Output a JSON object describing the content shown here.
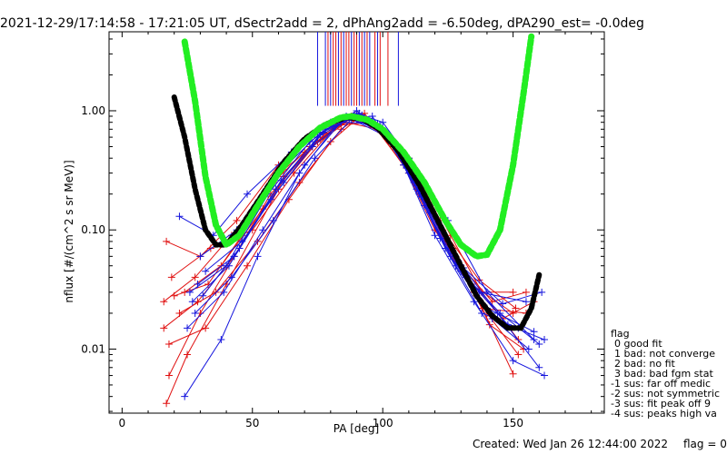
{
  "title": "2021-12-29/17:14:58 - 17:21:05 UT, dSectr2add = 2, dPhAng2add = -6.50deg, dPA290_est=  -0.0deg",
  "footer": {
    "created": "Created: Wed Jan 26 12:44:00 2022",
    "flag": "flag = 0"
  },
  "legend": {
    "title": "flag",
    "items": [
      "0 good fit",
      "1 bad: not converge",
      "2 bad: no fit",
      "3 bad: bad fgm stat",
      "-1 sus: far off medic",
      "-2 sus: not symmetric",
      "-3 sus: fit peak off 9",
      "-4 sus: peaks high va"
    ]
  },
  "colors": {
    "red": "#e01010",
    "blue": "#1515dd",
    "green": "#22ee22",
    "black": "#000000"
  },
  "chart_data": {
    "type": "line",
    "xlabel": "PA [deg]",
    "ylabel": "nflux [#/(cm^2 s sr MeV)]",
    "x_ticks": [
      0,
      50,
      100,
      150
    ],
    "y_ticks": [
      0.01,
      0.1,
      1.0
    ],
    "y_tick_labels": [
      "0.01",
      "0.10",
      "1.00"
    ],
    "xlim": [
      -5,
      185
    ],
    "ylim": [
      0.0029,
      4.6
    ],
    "yscale": "log",
    "red_lines": [
      [
        [
          17,
          0.0035
        ],
        [
          25,
          0.009
        ],
        [
          40,
          0.035
        ],
        [
          60,
          0.22
        ],
        [
          75,
          0.55
        ],
        [
          88,
          0.9
        ],
        [
          100,
          0.7
        ],
        [
          112,
          0.3
        ],
        [
          125,
          0.08
        ],
        [
          136,
          0.028
        ],
        [
          150,
          0.0062
        ]
      ],
      [
        [
          18,
          0.006
        ],
        [
          30,
          0.02
        ],
        [
          45,
          0.07
        ],
        [
          62,
          0.28
        ],
        [
          78,
          0.65
        ],
        [
          90,
          1.0
        ],
        [
          103,
          0.55
        ],
        [
          115,
          0.2
        ],
        [
          128,
          0.06
        ],
        [
          140,
          0.02
        ],
        [
          152,
          0.009
        ]
      ],
      [
        [
          16,
          0.025
        ],
        [
          28,
          0.04
        ],
        [
          42,
          0.09
        ],
        [
          58,
          0.25
        ],
        [
          72,
          0.5
        ],
        [
          86,
          0.85
        ],
        [
          98,
          0.75
        ],
        [
          110,
          0.4
        ],
        [
          122,
          0.12
        ],
        [
          134,
          0.035
        ],
        [
          150,
          0.02
        ]
      ],
      [
        [
          17,
          0.08
        ],
        [
          30,
          0.06
        ],
        [
          44,
          0.12
        ],
        [
          60,
          0.35
        ],
        [
          76,
          0.7
        ],
        [
          92,
          0.9
        ],
        [
          104,
          0.5
        ],
        [
          116,
          0.18
        ],
        [
          130,
          0.05
        ],
        [
          142,
          0.025
        ],
        [
          155,
          0.03
        ]
      ],
      [
        [
          18,
          0.011
        ],
        [
          32,
          0.015
        ],
        [
          48,
          0.05
        ],
        [
          64,
          0.18
        ],
        [
          80,
          0.55
        ],
        [
          90,
          0.85
        ],
        [
          102,
          0.6
        ],
        [
          114,
          0.28
        ],
        [
          126,
          0.09
        ],
        [
          138,
          0.03
        ],
        [
          152,
          0.012
        ]
      ],
      [
        [
          19,
          0.04
        ],
        [
          34,
          0.07
        ],
        [
          50,
          0.1
        ],
        [
          66,
          0.3
        ],
        [
          82,
          0.75
        ],
        [
          95,
          0.8
        ],
        [
          106,
          0.45
        ],
        [
          118,
          0.14
        ],
        [
          132,
          0.04
        ],
        [
          146,
          0.018
        ],
        [
          158,
          0.025
        ]
      ],
      [
        [
          22,
          0.02
        ],
        [
          36,
          0.03
        ],
        [
          52,
          0.08
        ],
        [
          68,
          0.25
        ],
        [
          84,
          0.7
        ],
        [
          93,
          0.95
        ],
        [
          108,
          0.35
        ],
        [
          120,
          0.1
        ],
        [
          135,
          0.03
        ],
        [
          150,
          0.03
        ]
      ],
      [
        [
          24,
          0.03
        ],
        [
          38,
          0.05
        ],
        [
          54,
          0.15
        ],
        [
          70,
          0.45
        ],
        [
          86,
          0.8
        ],
        [
          98,
          0.7
        ],
        [
          110,
          0.3
        ],
        [
          124,
          0.08
        ],
        [
          138,
          0.022
        ],
        [
          155,
          0.02
        ]
      ],
      [
        [
          20,
          0.028
        ],
        [
          33,
          0.035
        ],
        [
          46,
          0.09
        ],
        [
          62,
          0.32
        ],
        [
          77,
          0.6
        ],
        [
          89,
          0.9
        ],
        [
          101,
          0.65
        ],
        [
          113,
          0.25
        ],
        [
          127,
          0.07
        ],
        [
          141,
          0.016
        ],
        [
          154,
          0.01
        ]
      ],
      [
        [
          16,
          0.015
        ],
        [
          29,
          0.025
        ],
        [
          43,
          0.06
        ],
        [
          57,
          0.2
        ],
        [
          73,
          0.5
        ],
        [
          87,
          0.88
        ],
        [
          99,
          0.72
        ],
        [
          111,
          0.33
        ],
        [
          123,
          0.1
        ],
        [
          137,
          0.038
        ],
        [
          151,
          0.022
        ]
      ]
    ],
    "blue_lines": [
      [
        [
          22,
          0.13
        ],
        [
          35,
          0.09
        ],
        [
          48,
          0.2
        ],
        [
          65,
          0.45
        ],
        [
          80,
          0.8
        ],
        [
          90,
          0.95
        ],
        [
          100,
          0.8
        ],
        [
          110,
          0.4
        ],
        [
          125,
          0.12
        ],
        [
          140,
          0.03
        ],
        [
          158,
          0.012
        ]
      ],
      [
        [
          24,
          0.004
        ],
        [
          38,
          0.012
        ],
        [
          52,
          0.06
        ],
        [
          68,
          0.3
        ],
        [
          84,
          0.85
        ],
        [
          96,
          0.9
        ],
        [
          108,
          0.35
        ],
        [
          120,
          0.09
        ],
        [
          135,
          0.025
        ],
        [
          150,
          0.008
        ],
        [
          162,
          0.006
        ]
      ],
      [
        [
          26,
          0.03
        ],
        [
          40,
          0.05
        ],
        [
          56,
          0.2
        ],
        [
          72,
          0.55
        ],
        [
          86,
          0.9
        ],
        [
          100,
          0.7
        ],
        [
          112,
          0.25
        ],
        [
          124,
          0.07
        ],
        [
          138,
          0.02
        ],
        [
          152,
          0.015
        ]
      ],
      [
        [
          28,
          0.02
        ],
        [
          42,
          0.04
        ],
        [
          58,
          0.12
        ],
        [
          74,
          0.4
        ],
        [
          88,
          0.85
        ],
        [
          102,
          0.6
        ],
        [
          114,
          0.2
        ],
        [
          128,
          0.05
        ],
        [
          142,
          0.018
        ],
        [
          156,
          0.01
        ]
      ],
      [
        [
          30,
          0.06
        ],
        [
          44,
          0.1
        ],
        [
          60,
          0.3
        ],
        [
          76,
          0.65
        ],
        [
          90,
          1.0
        ],
        [
          104,
          0.55
        ],
        [
          116,
          0.16
        ],
        [
          130,
          0.045
        ],
        [
          145,
          0.02
        ],
        [
          160,
          0.011
        ]
      ],
      [
        [
          25,
          0.015
        ],
        [
          39,
          0.03
        ],
        [
          54,
          0.1
        ],
        [
          70,
          0.35
        ],
        [
          84,
          0.8
        ],
        [
          98,
          0.78
        ],
        [
          110,
          0.3
        ],
        [
          122,
          0.085
        ],
        [
          137,
          0.03
        ],
        [
          155,
          0.025
        ]
      ],
      [
        [
          32,
          0.045
        ],
        [
          46,
          0.08
        ],
        [
          62,
          0.25
        ],
        [
          78,
          0.7
        ],
        [
          92,
          0.92
        ],
        [
          106,
          0.5
        ],
        [
          118,
          0.14
        ],
        [
          132,
          0.04
        ],
        [
          148,
          0.016
        ],
        [
          162,
          0.012
        ]
      ],
      [
        [
          27,
          0.025
        ],
        [
          41,
          0.05
        ],
        [
          57,
          0.18
        ],
        [
          73,
          0.5
        ],
        [
          87,
          0.88
        ],
        [
          101,
          0.65
        ],
        [
          113,
          0.22
        ],
        [
          126,
          0.06
        ],
        [
          140,
          0.022
        ],
        [
          158,
          0.014
        ]
      ],
      [
        [
          29,
          0.035
        ],
        [
          43,
          0.06
        ],
        [
          59,
          0.22
        ],
        [
          75,
          0.6
        ],
        [
          89,
          0.9
        ],
        [
          103,
          0.58
        ],
        [
          115,
          0.19
        ],
        [
          129,
          0.055
        ],
        [
          144,
          0.02
        ],
        [
          160,
          0.007
        ]
      ],
      [
        [
          31,
          0.028
        ],
        [
          45,
          0.07
        ],
        [
          61,
          0.26
        ],
        [
          77,
          0.66
        ],
        [
          91,
          0.95
        ],
        [
          105,
          0.52
        ],
        [
          117,
          0.16
        ],
        [
          131,
          0.048
        ],
        [
          146,
          0.024
        ],
        [
          161,
          0.03
        ]
      ]
    ],
    "green_curve": [
      [
        24,
        3.8
      ],
      [
        28,
        1.2
      ],
      [
        32,
        0.28
      ],
      [
        36,
        0.11
      ],
      [
        40,
        0.075
      ],
      [
        45,
        0.09
      ],
      [
        52,
        0.16
      ],
      [
        60,
        0.3
      ],
      [
        68,
        0.5
      ],
      [
        76,
        0.72
      ],
      [
        84,
        0.88
      ],
      [
        88,
        0.9
      ],
      [
        94,
        0.84
      ],
      [
        100,
        0.7
      ],
      [
        108,
        0.45
      ],
      [
        116,
        0.25
      ],
      [
        124,
        0.12
      ],
      [
        130,
        0.075
      ],
      [
        136,
        0.06
      ],
      [
        140,
        0.062
      ],
      [
        145,
        0.1
      ],
      [
        150,
        0.35
      ],
      [
        154,
        1.4
      ],
      [
        157,
        4.2
      ]
    ],
    "black_curve": [
      [
        20,
        1.3
      ],
      [
        24,
        0.6
      ],
      [
        28,
        0.22
      ],
      [
        32,
        0.1
      ],
      [
        36,
        0.075
      ],
      [
        40,
        0.075
      ],
      [
        46,
        0.11
      ],
      [
        54,
        0.2
      ],
      [
        62,
        0.37
      ],
      [
        70,
        0.58
      ],
      [
        78,
        0.77
      ],
      [
        86,
        0.88
      ],
      [
        92,
        0.86
      ],
      [
        98,
        0.72
      ],
      [
        106,
        0.46
      ],
      [
        114,
        0.24
      ],
      [
        122,
        0.11
      ],
      [
        130,
        0.05
      ],
      [
        136,
        0.028
      ],
      [
        142,
        0.019
      ],
      [
        148,
        0.015
      ],
      [
        153,
        0.015
      ],
      [
        157,
        0.022
      ],
      [
        160,
        0.042
      ]
    ],
    "red_ticks_x": [
      79,
      81,
      82,
      84,
      86,
      87,
      89,
      90,
      92,
      94,
      97,
      99,
      102
    ],
    "blue_ticks_x": [
      75,
      78,
      80,
      83,
      85,
      88,
      91,
      93,
      95,
      98,
      106
    ],
    "tick_y_range": [
      1.1,
      4.6
    ]
  }
}
